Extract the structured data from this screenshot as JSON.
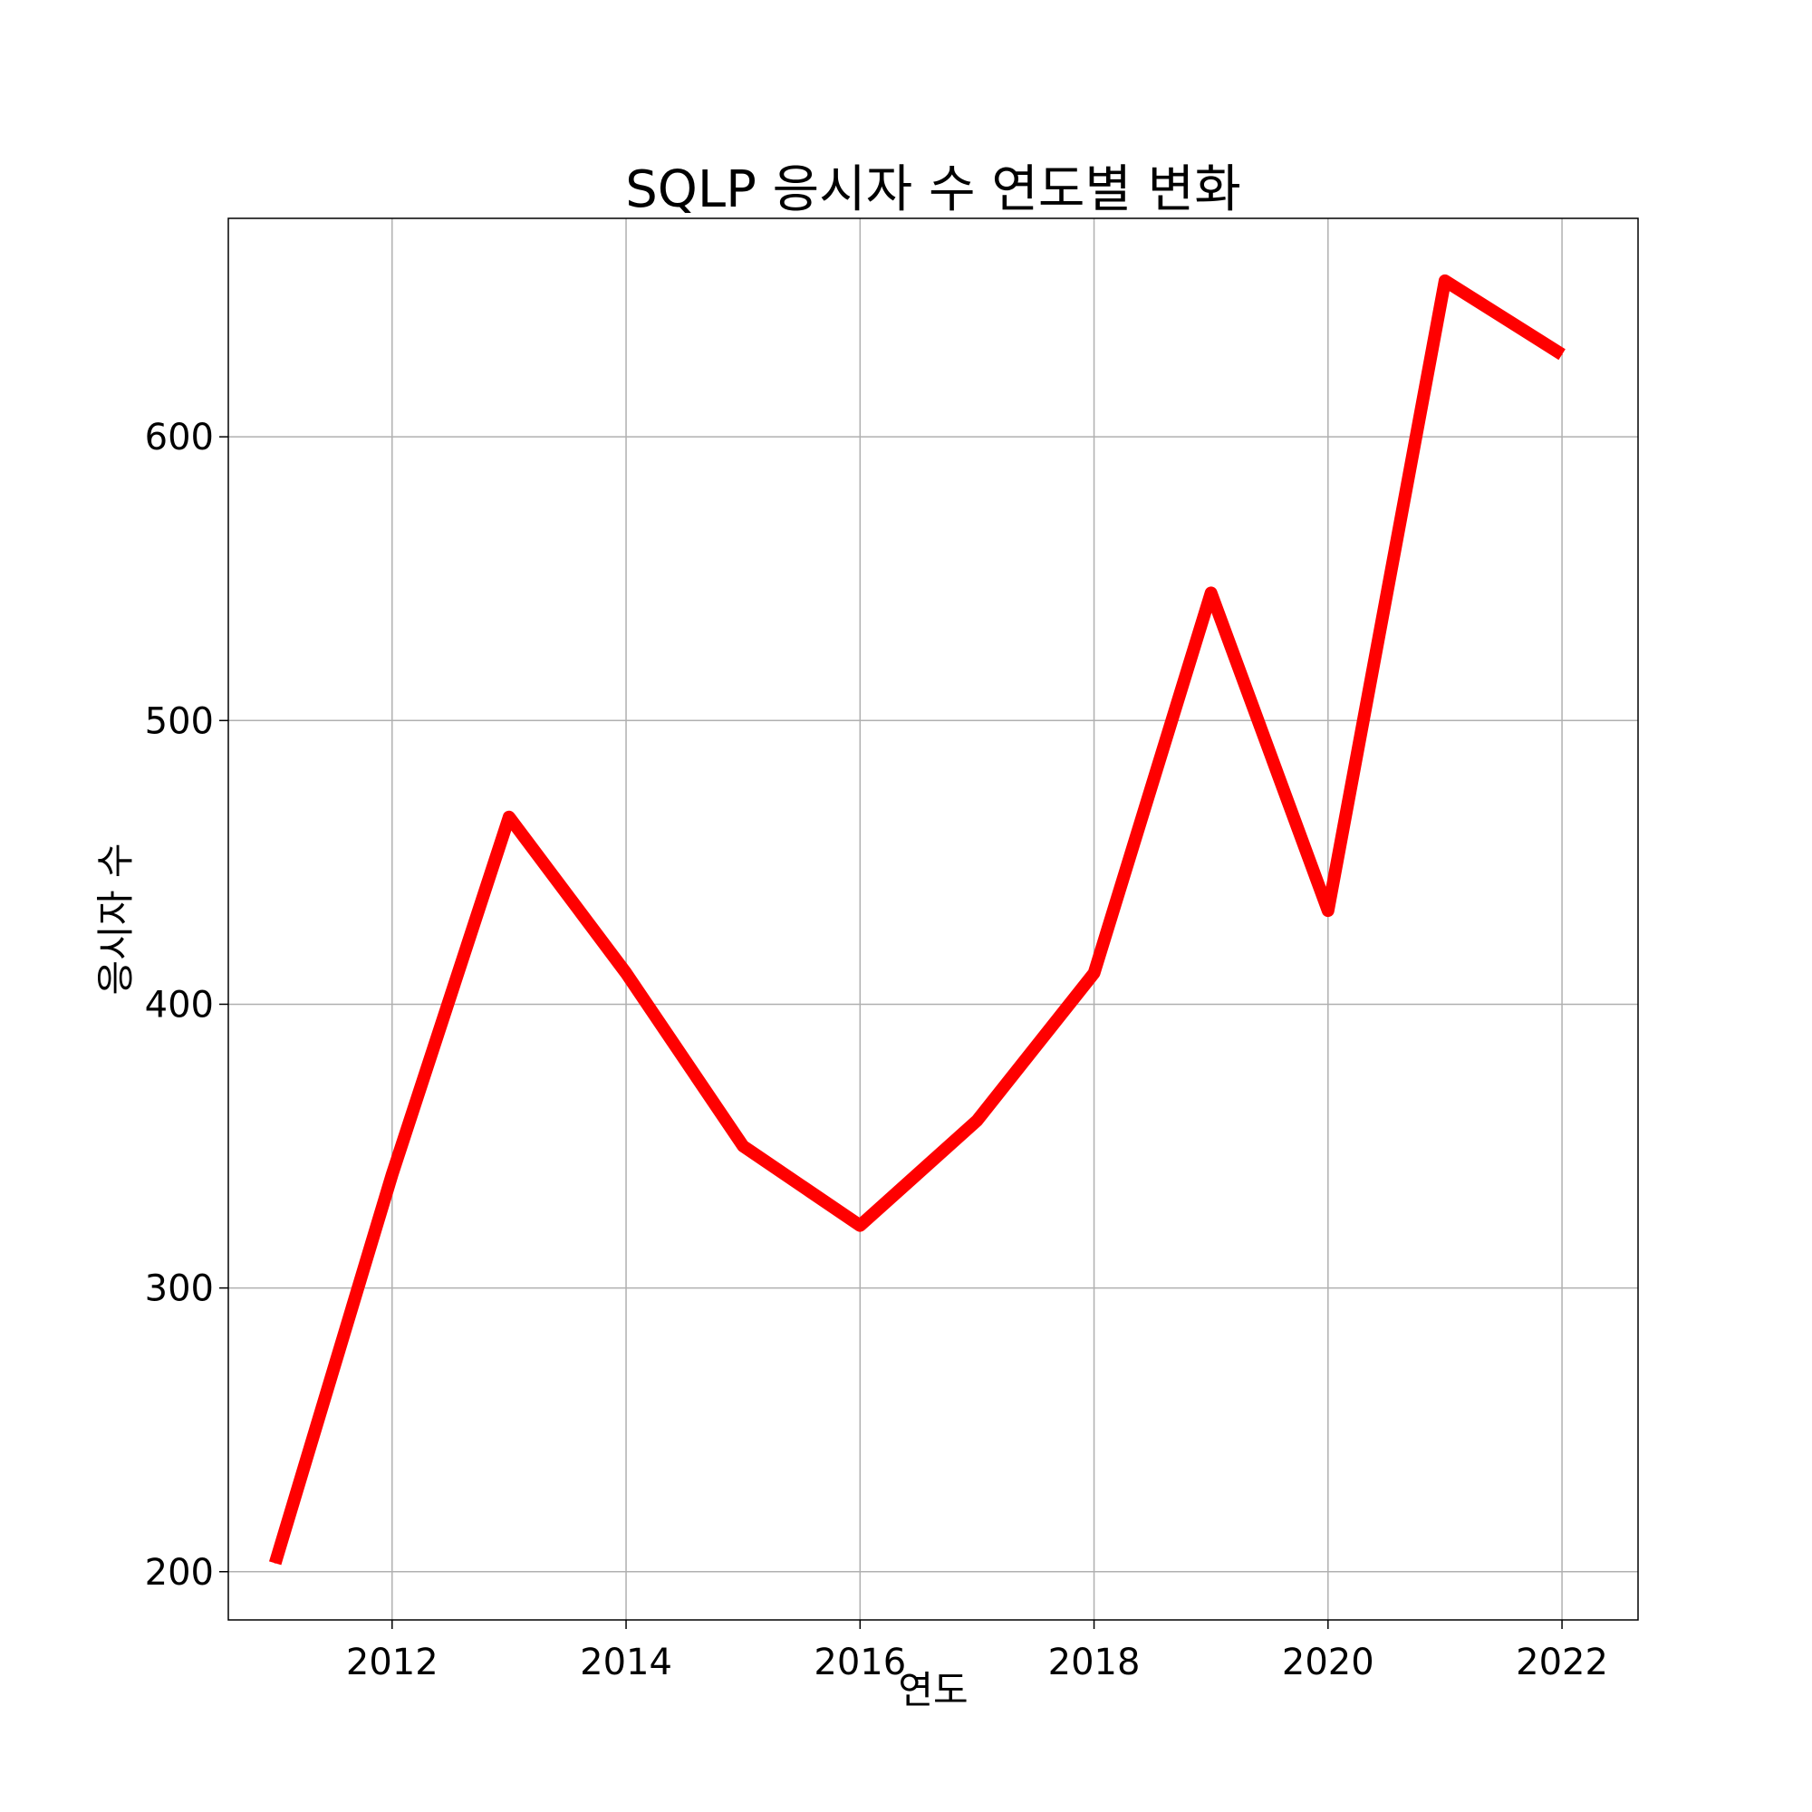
{
  "chart_data": {
    "type": "line",
    "title": "SQLP 응시자 수 연도별 변화",
    "xlabel": "연도",
    "ylabel": "응시자 수",
    "x": [
      2011,
      2012,
      2013,
      2014,
      2015,
      2016,
      2017,
      2018,
      2019,
      2020,
      2021,
      2022
    ],
    "series": [
      {
        "values": [
          203,
          340,
          466,
          411,
          350,
          322,
          359,
          411,
          545,
          433,
          655,
          629
        ]
      }
    ],
    "xlim": [
      2010.6,
      2022.65
    ],
    "ylim": [
      183,
      677
    ],
    "xticks": [
      2012,
      2014,
      2016,
      2018,
      2020,
      2022
    ],
    "yticks": [
      200,
      300,
      400,
      500,
      600
    ],
    "grid": true,
    "line_color": "#ff0000"
  }
}
